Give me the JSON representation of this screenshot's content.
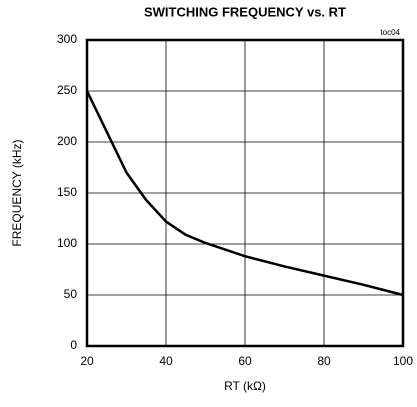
{
  "chart_data": {
    "type": "line",
    "title": "SWITCHING FREQUENCY vs. RT",
    "annotation": "toc04",
    "x_label": "RT (kΩ)",
    "y_label": "FREQUENCY (kHz)",
    "x": [
      20,
      25,
      30,
      35,
      40,
      45,
      50,
      60,
      70,
      80,
      90,
      100
    ],
    "series": [
      {
        "name": "frequency",
        "color": "#000000",
        "values": [
          250,
          210,
          170,
          143,
          122,
          109,
          101,
          88,
          78,
          69,
          60,
          50
        ]
      }
    ],
    "xlim": [
      20,
      100
    ],
    "xticks": [
      20,
      40,
      60,
      80,
      100
    ],
    "ylim": [
      0,
      300
    ],
    "yticks": [
      0,
      50,
      100,
      150,
      200,
      250,
      300
    ],
    "grid": true
  }
}
